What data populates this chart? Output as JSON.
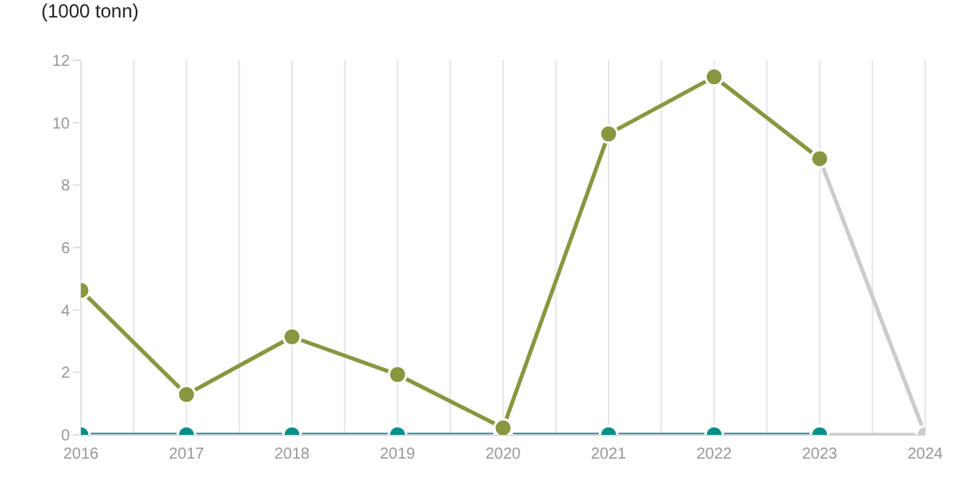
{
  "chart_data": {
    "type": "line",
    "ylabel": "(1000 tonn)",
    "categories": [
      "2016",
      "2017",
      "2018",
      "2019",
      "2020",
      "2021",
      "2022",
      "2023",
      "2024"
    ],
    "series": [
      {
        "color": "#cccccc",
        "values": [
          null,
          null,
          null,
          null,
          null,
          null,
          null,
          8.85,
          0
        ]
      },
      {
        "color": "#cccccc",
        "values": [
          null,
          null,
          null,
          null,
          null,
          null,
          null,
          0,
          0
        ]
      },
      {
        "color": "#009089",
        "values": [
          0,
          0,
          0,
          0,
          0,
          0,
          0,
          0,
          null
        ]
      },
      {
        "color": "#8a9640",
        "values": [
          4.63,
          1.29,
          3.14,
          1.93,
          0.22,
          9.64,
          11.47,
          8.85,
          null
        ]
      }
    ],
    "ylim": [
      0,
      12
    ],
    "yticks": [
      0,
      2,
      4,
      6,
      8,
      10,
      12
    ],
    "grid": "x",
    "marker": "circle",
    "line_style": "solid"
  }
}
